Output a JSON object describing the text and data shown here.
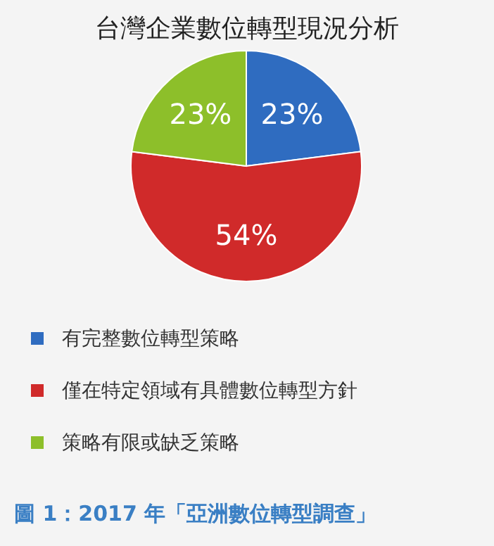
{
  "chart_data": {
    "type": "pie",
    "title": "台灣企業數位轉型現況分析",
    "categories": [
      "有完整數位轉型策略",
      "僅在特定領域有具體數位轉型方針",
      "策略有限或缺乏策略"
    ],
    "values": [
      23,
      54,
      23
    ],
    "colors": [
      "#2f6cc0",
      "#d02a2a",
      "#8dbf2a"
    ],
    "value_labels": [
      "23%",
      "54%",
      "23%"
    ],
    "legend": "bottom",
    "annotations": [
      "圖 1：2017 年「亞洲數位轉型調查」"
    ]
  }
}
